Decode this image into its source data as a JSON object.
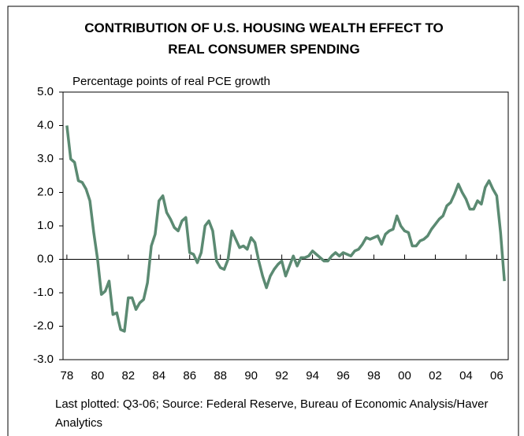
{
  "chart_data": {
    "type": "line",
    "title": "CONTRIBUTION OF U.S. HOUSING WEALTH EFFECT TO REAL CONSUMER SPENDING",
    "subtitle": "Percentage points of real PCE growth",
    "note": "Last plotted: Q3-06; Source: Federal Reserve, Bureau of Economic Analysis/Haver Analytics",
    "x": [
      1978,
      1978.25,
      1978.5,
      1978.75,
      1979,
      1979.25,
      1979.5,
      1979.75,
      1980,
      1980.25,
      1980.5,
      1980.75,
      1981,
      1981.25,
      1981.5,
      1981.75,
      1982,
      1982.25,
      1982.5,
      1982.75,
      1983,
      1983.25,
      1983.5,
      1983.75,
      1984,
      1984.25,
      1984.5,
      1984.75,
      1985,
      1985.25,
      1985.5,
      1985.75,
      1986,
      1986.25,
      1986.5,
      1986.75,
      1987,
      1987.25,
      1987.5,
      1987.75,
      1988,
      1988.25,
      1988.5,
      1988.75,
      1989,
      1989.25,
      1989.5,
      1989.75,
      1990,
      1990.25,
      1990.5,
      1990.75,
      1991,
      1991.25,
      1991.5,
      1991.75,
      1992,
      1992.25,
      1992.5,
      1992.75,
      1993,
      1993.25,
      1993.5,
      1993.75,
      1994,
      1994.25,
      1994.5,
      1994.75,
      1995,
      1995.25,
      1995.5,
      1995.75,
      1996,
      1996.25,
      1996.5,
      1996.75,
      1997,
      1997.25,
      1997.5,
      1997.75,
      1998,
      1998.25,
      1998.5,
      1998.75,
      1999,
      1999.25,
      1999.5,
      1999.75,
      2000,
      2000.25,
      2000.5,
      2000.75,
      2001,
      2001.25,
      2001.5,
      2001.75,
      2002,
      2002.25,
      2002.5,
      2002.75,
      2003,
      2003.25,
      2003.5,
      2003.75,
      2004,
      2004.25,
      2004.5,
      2004.75,
      2005,
      2005.25,
      2005.5,
      2005.75,
      2006,
      2006.25,
      2006.5
    ],
    "series": [
      {
        "name": "Housing wealth effect",
        "color": "#5b8a72",
        "values": [
          4.0,
          3.0,
          2.9,
          2.35,
          2.3,
          2.1,
          1.75,
          0.8,
          0.0,
          -1.05,
          -0.95,
          -0.65,
          -1.65,
          -1.6,
          -2.1,
          -2.15,
          -1.15,
          -1.15,
          -1.5,
          -1.3,
          -1.2,
          -0.7,
          0.4,
          0.75,
          1.75,
          1.9,
          1.4,
          1.2,
          0.95,
          0.85,
          1.15,
          1.25,
          0.2,
          0.15,
          -0.1,
          0.2,
          1.0,
          1.15,
          0.85,
          -0.05,
          -0.25,
          -0.3,
          0.0,
          0.85,
          0.6,
          0.35,
          0.4,
          0.3,
          0.65,
          0.5,
          -0.05,
          -0.5,
          -0.85,
          -0.5,
          -0.3,
          -0.15,
          -0.05,
          -0.5,
          -0.2,
          0.1,
          -0.2,
          0.05,
          0.05,
          0.1,
          0.25,
          0.15,
          0.05,
          -0.05,
          -0.05,
          0.1,
          0.2,
          0.1,
          0.2,
          0.15,
          0.1,
          0.25,
          0.3,
          0.45,
          0.65,
          0.6,
          0.65,
          0.7,
          0.45,
          0.75,
          0.85,
          0.9,
          1.3,
          1.0,
          0.85,
          0.8,
          0.4,
          0.4,
          0.55,
          0.6,
          0.7,
          0.9,
          1.05,
          1.2,
          1.3,
          1.6,
          1.7,
          1.95,
          2.25,
          2.0,
          1.8,
          1.5,
          1.5,
          1.75,
          1.65,
          2.15,
          2.35,
          2.1,
          1.9,
          0.8,
          -0.65
        ]
      }
    ],
    "xlim": [
      1977.75,
      2006.75
    ],
    "xticks": [
      {
        "value": 1978,
        "label": "78"
      },
      {
        "value": 1980,
        "label": "80"
      },
      {
        "value": 1982,
        "label": "82"
      },
      {
        "value": 1984,
        "label": "84"
      },
      {
        "value": 1986,
        "label": "86"
      },
      {
        "value": 1988,
        "label": "88"
      },
      {
        "value": 1990,
        "label": "90"
      },
      {
        "value": 1992,
        "label": "92"
      },
      {
        "value": 1994,
        "label": "94"
      },
      {
        "value": 1996,
        "label": "96"
      },
      {
        "value": 1998,
        "label": "98"
      },
      {
        "value": 2000,
        "label": "00"
      },
      {
        "value": 2002,
        "label": "02"
      },
      {
        "value": 2004,
        "label": "04"
      },
      {
        "value": 2006,
        "label": "06"
      }
    ],
    "ylim": [
      -3,
      5
    ],
    "yticks": [
      {
        "value": 5,
        "label": "5.0"
      },
      {
        "value": 4,
        "label": "4.0"
      },
      {
        "value": 3,
        "label": "3.0"
      },
      {
        "value": 2,
        "label": "2.0"
      },
      {
        "value": 1,
        "label": "1.0"
      },
      {
        "value": 0,
        "label": "0.0"
      },
      {
        "value": -1,
        "label": "-1.0"
      },
      {
        "value": -2,
        "label": "-2.0"
      },
      {
        "value": -3,
        "label": "-3.0"
      }
    ]
  }
}
